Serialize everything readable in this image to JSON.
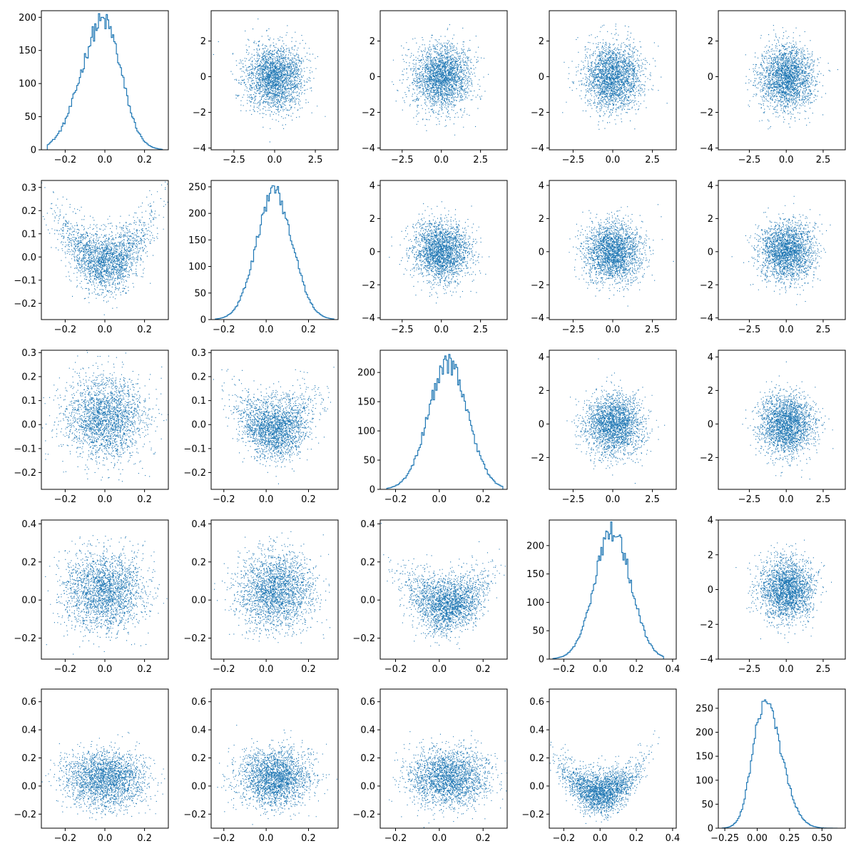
{
  "figure": {
    "series_color": "#1f77b4",
    "layout": "5x5 pair-plot grid (histograms on diagonal, scatter plots off-diagonal)"
  },
  "chart_data": [
    {
      "row": 0,
      "col": 0,
      "type": "histogram",
      "xlim": [
        -0.32,
        0.32
      ],
      "ylim": [
        0,
        210
      ],
      "xticks": [
        -0.2,
        0.0,
        0.2
      ],
      "xtick_labels": [
        "−0.2",
        "0.0",
        "0.2"
      ],
      "yticks": [
        0,
        50,
        100,
        150,
        200
      ],
      "ytick_labels": [
        "0",
        "50",
        "100",
        "150",
        "200"
      ],
      "hist": {
        "range": [
          -0.29,
          0.29
        ],
        "peak_x": -0.01,
        "spread": 0.1,
        "peak": 195,
        "skew": -0.3,
        "noise": 0.08
      }
    },
    {
      "row": 0,
      "col": 1,
      "type": "scatter",
      "xlim": [
        -3.9,
        3.9
      ],
      "ylim": [
        -4.1,
        3.7
      ],
      "xticks": [
        -2.5,
        0.0,
        2.5
      ],
      "xtick_labels": [
        "−2.5",
        "0.0",
        "2.5"
      ],
      "yticks": [
        -4,
        -2,
        0,
        2
      ],
      "ytick_labels": [
        "−4",
        "−2",
        "0",
        "2"
      ],
      "scatter": {
        "kind": "gauss",
        "sx": 0.9,
        "sy": 0.9,
        "n": 2400
      }
    },
    {
      "row": 0,
      "col": 2,
      "type": "scatter",
      "xlim": [
        -3.9,
        4.2
      ],
      "ylim": [
        -4.1,
        3.7
      ],
      "xticks": [
        -2.5,
        0.0,
        2.5
      ],
      "xtick_labels": [
        "−2.5",
        "0.0",
        "2.5"
      ],
      "yticks": [
        -4,
        -2,
        0,
        2
      ],
      "ytick_labels": [
        "−4",
        "−2",
        "0",
        "2"
      ],
      "scatter": {
        "kind": "gauss",
        "sx": 0.9,
        "sy": 0.9,
        "n": 2400
      }
    },
    {
      "row": 0,
      "col": 3,
      "type": "scatter",
      "xlim": [
        -4.0,
        4.0
      ],
      "ylim": [
        -4.1,
        3.7
      ],
      "xticks": [
        -2.5,
        0.0,
        2.5
      ],
      "xtick_labels": [
        "−2.5",
        "0.0",
        "2.5"
      ],
      "yticks": [
        -4,
        -2,
        0,
        2
      ],
      "ytick_labels": [
        "−4",
        "−2",
        "0",
        "2"
      ],
      "scatter": {
        "kind": "gauss",
        "sx": 0.9,
        "sy": 0.9,
        "n": 2400
      }
    },
    {
      "row": 0,
      "col": 4,
      "type": "scatter",
      "xlim": [
        -4.6,
        4.0
      ],
      "ylim": [
        -4.1,
        3.7
      ],
      "xticks": [
        -2.5,
        0.0,
        2.5
      ],
      "xtick_labels": [
        "−2.5",
        "0.0",
        "2.5"
      ],
      "yticks": [
        -4,
        -2,
        0,
        2
      ],
      "ytick_labels": [
        "−4",
        "−2",
        "0",
        "2"
      ],
      "scatter": {
        "kind": "gauss",
        "sx": 0.9,
        "sy": 0.9,
        "n": 2400
      }
    },
    {
      "row": 1,
      "col": 0,
      "type": "scatter",
      "xlim": [
        -0.32,
        0.32
      ],
      "ylim": [
        -0.27,
        0.33
      ],
      "xticks": [
        -0.2,
        0.0,
        0.2
      ],
      "xtick_labels": [
        "−0.2",
        "0.0",
        "0.2"
      ],
      "yticks": [
        -0.2,
        -0.1,
        0.0,
        0.1,
        0.2,
        0.3
      ],
      "ytick_labels": [
        "−0.2",
        "−0.1",
        "0.0",
        "0.1",
        "0.2",
        "0.3"
      ],
      "scatter": {
        "kind": "vshape",
        "sx": 0.11,
        "cx": 0.0,
        "cy": -0.02,
        "k": 2.8,
        "sy": 0.065,
        "n": 2400
      }
    },
    {
      "row": 1,
      "col": 1,
      "type": "histogram",
      "xlim": [
        -0.26,
        0.34
      ],
      "ylim": [
        0,
        262
      ],
      "xticks": [
        -0.2,
        0.0,
        0.2
      ],
      "xtick_labels": [
        "−0.2",
        "0.0",
        "0.2"
      ],
      "yticks": [
        0,
        50,
        100,
        150,
        200,
        250
      ],
      "ytick_labels": [
        "0",
        "50",
        "100",
        "150",
        "200",
        "250"
      ],
      "hist": {
        "range": [
          -0.24,
          0.32
        ],
        "peak_x": 0.04,
        "spread": 0.085,
        "peak": 240,
        "skew": 0.0,
        "noise": 0.07
      }
    },
    {
      "row": 1,
      "col": 2,
      "type": "scatter",
      "xlim": [
        -3.9,
        4.2
      ],
      "ylim": [
        -4.1,
        4.3
      ],
      "xticks": [
        -2.5,
        0.0,
        2.5
      ],
      "xtick_labels": [
        "−2.5",
        "0.0",
        "2.5"
      ],
      "yticks": [
        -4,
        -2,
        0,
        2,
        4
      ],
      "ytick_labels": [
        "−4",
        "−2",
        "0",
        "2",
        "4"
      ],
      "scatter": {
        "kind": "gauss",
        "sx": 0.9,
        "sy": 0.9,
        "n": 2400
      }
    },
    {
      "row": 1,
      "col": 3,
      "type": "scatter",
      "xlim": [
        -4.0,
        4.0
      ],
      "ylim": [
        -4.1,
        4.3
      ],
      "xticks": [
        -2.5,
        0.0,
        2.5
      ],
      "xtick_labels": [
        "−2.5",
        "0.0",
        "2.5"
      ],
      "yticks": [
        -4,
        -2,
        0,
        2,
        4
      ],
      "ytick_labels": [
        "−4",
        "−2",
        "0",
        "2",
        "4"
      ],
      "scatter": {
        "kind": "gauss",
        "sx": 0.9,
        "sy": 0.9,
        "n": 2400
      }
    },
    {
      "row": 1,
      "col": 4,
      "type": "scatter",
      "xlim": [
        -4.6,
        4.0
      ],
      "ylim": [
        -4.1,
        4.3
      ],
      "xticks": [
        -2.5,
        0.0,
        2.5
      ],
      "xtick_labels": [
        "−2.5",
        "0.0",
        "2.5"
      ],
      "yticks": [
        -4,
        -2,
        0,
        2,
        4
      ],
      "ytick_labels": [
        "−4",
        "−2",
        "0",
        "2",
        "4"
      ],
      "scatter": {
        "kind": "gauss",
        "sx": 0.9,
        "sy": 0.9,
        "n": 2400
      }
    },
    {
      "row": 2,
      "col": 0,
      "type": "scatter",
      "xlim": [
        -0.32,
        0.32
      ],
      "ylim": [
        -0.27,
        0.31
      ],
      "xticks": [
        -0.2,
        0.0,
        0.2
      ],
      "xtick_labels": [
        "−0.2",
        "0.0",
        "0.2"
      ],
      "yticks": [
        -0.2,
        -0.1,
        0.0,
        0.1,
        0.2,
        0.3
      ],
      "ytick_labels": [
        "−0.2",
        "−0.1",
        "0.0",
        "0.1",
        "0.2",
        "0.3"
      ],
      "scatter": {
        "kind": "gauss",
        "sx": 0.1,
        "sy": 0.085,
        "mx": 0.0,
        "my": 0.03,
        "n": 2400
      }
    },
    {
      "row": 2,
      "col": 1,
      "type": "scatter",
      "xlim": [
        -0.26,
        0.34
      ],
      "ylim": [
        -0.27,
        0.31
      ],
      "xticks": [
        -0.2,
        0.0,
        0.2
      ],
      "xtick_labels": [
        "−0.2",
        "0.0",
        "0.2"
      ],
      "yticks": [
        -0.2,
        -0.1,
        0.0,
        0.1,
        0.2,
        0.3
      ],
      "ytick_labels": [
        "−0.2",
        "−0.1",
        "0.0",
        "0.1",
        "0.2",
        "0.3"
      ],
      "scatter": {
        "kind": "vshape",
        "sx": 0.085,
        "cx": 0.04,
        "cy": -0.02,
        "k": 2.4,
        "sy": 0.065,
        "n": 2400
      }
    },
    {
      "row": 2,
      "col": 2,
      "type": "histogram",
      "xlim": [
        -0.27,
        0.31
      ],
      "ylim": [
        0,
        238
      ],
      "xticks": [
        -0.2,
        0.0,
        0.2
      ],
      "xtick_labels": [
        "−0.2",
        "0.0",
        "0.2"
      ],
      "yticks": [
        0,
        50,
        100,
        150,
        200
      ],
      "ytick_labels": [
        "0",
        "50",
        "100",
        "150",
        "200"
      ],
      "hist": {
        "range": [
          -0.24,
          0.29
        ],
        "peak_x": 0.04,
        "spread": 0.09,
        "peak": 215,
        "skew": 0.0,
        "noise": 0.08
      }
    },
    {
      "row": 2,
      "col": 3,
      "type": "scatter",
      "xlim": [
        -4.0,
        4.0
      ],
      "ylim": [
        -3.9,
        4.4
      ],
      "xticks": [
        -2.5,
        0.0,
        2.5
      ],
      "xtick_labels": [
        "−2.5",
        "0.0",
        "2.5"
      ],
      "yticks": [
        -2,
        0,
        2,
        4
      ],
      "ytick_labels": [
        "−2",
        "0",
        "2",
        "4"
      ],
      "scatter": {
        "kind": "gauss",
        "sx": 0.9,
        "sy": 0.9,
        "n": 2400
      }
    },
    {
      "row": 2,
      "col": 4,
      "type": "scatter",
      "xlim": [
        -4.6,
        4.0
      ],
      "ylim": [
        -3.9,
        4.4
      ],
      "xticks": [
        -2.5,
        0.0,
        2.5
      ],
      "xtick_labels": [
        "−2.5",
        "0.0",
        "2.5"
      ],
      "yticks": [
        -2,
        0,
        2,
        4
      ],
      "ytick_labels": [
        "−2",
        "0",
        "2",
        "4"
      ],
      "scatter": {
        "kind": "gauss",
        "sx": 0.9,
        "sy": 0.9,
        "n": 2400
      }
    },
    {
      "row": 3,
      "col": 0,
      "type": "scatter",
      "xlim": [
        -0.32,
        0.32
      ],
      "ylim": [
        -0.31,
        0.42
      ],
      "xticks": [
        -0.2,
        0.0,
        0.2
      ],
      "xtick_labels": [
        "−0.2",
        "0.0",
        "0.2"
      ],
      "yticks": [
        -0.2,
        0.0,
        0.2,
        0.4
      ],
      "ytick_labels": [
        "−0.2",
        "0.0",
        "0.2",
        "0.4"
      ],
      "scatter": {
        "kind": "gauss",
        "sx": 0.1,
        "sy": 0.1,
        "mx": 0.0,
        "my": 0.05,
        "n": 2400
      }
    },
    {
      "row": 3,
      "col": 1,
      "type": "scatter",
      "xlim": [
        -0.26,
        0.34
      ],
      "ylim": [
        -0.31,
        0.42
      ],
      "xticks": [
        -0.2,
        0.0,
        0.2
      ],
      "xtick_labels": [
        "−0.2",
        "0.0",
        "0.2"
      ],
      "yticks": [
        -0.2,
        0.0,
        0.2,
        0.4
      ],
      "ytick_labels": [
        "−0.2",
        "0.0",
        "0.2",
        "0.4"
      ],
      "scatter": {
        "kind": "gauss",
        "sx": 0.085,
        "sy": 0.1,
        "mx": 0.04,
        "my": 0.05,
        "n": 2400
      }
    },
    {
      "row": 3,
      "col": 2,
      "type": "scatter",
      "xlim": [
        -0.27,
        0.31
      ],
      "ylim": [
        -0.31,
        0.42
      ],
      "xticks": [
        -0.2,
        0.0,
        0.2
      ],
      "xtick_labels": [
        "−0.2",
        "0.0",
        "0.2"
      ],
      "yticks": [
        -0.2,
        0.0,
        0.2,
        0.4
      ],
      "ytick_labels": [
        "−0.2",
        "0.0",
        "0.2",
        "0.4"
      ],
      "scatter": {
        "kind": "vshape",
        "sx": 0.09,
        "cx": 0.03,
        "cy": -0.03,
        "k": 3.2,
        "sy": 0.075,
        "n": 2400
      }
    },
    {
      "row": 3,
      "col": 3,
      "type": "histogram",
      "xlim": [
        -0.28,
        0.42
      ],
      "ylim": [
        0,
        245
      ],
      "xticks": [
        -0.2,
        0.0,
        0.2,
        0.4
      ],
      "xtick_labels": [
        "−0.2",
        "0.0",
        "0.2",
        "0.4"
      ],
      "yticks": [
        0,
        50,
        100,
        150,
        200
      ],
      "ytick_labels": [
        "0",
        "50",
        "100",
        "150",
        "200"
      ],
      "hist": {
        "range": [
          -0.26,
          0.35
        ],
        "peak_x": 0.07,
        "spread": 0.1,
        "peak": 225,
        "skew": 0.0,
        "noise": 0.08
      }
    },
    {
      "row": 3,
      "col": 4,
      "type": "scatter",
      "xlim": [
        -4.6,
        4.0
      ],
      "ylim": [
        -4.0,
        4.0
      ],
      "xticks": [
        -2.5,
        0.0,
        2.5
      ],
      "xtick_labels": [
        "−2.5",
        "0.0",
        "2.5"
      ],
      "yticks": [
        -4,
        -2,
        0,
        2,
        4
      ],
      "ytick_labels": [
        "−4",
        "−2",
        "0",
        "2",
        "4"
      ],
      "scatter": {
        "kind": "gauss",
        "sx": 0.9,
        "sy": 0.9,
        "n": 2400
      }
    },
    {
      "row": 4,
      "col": 0,
      "type": "scatter",
      "xlim": [
        -0.32,
        0.32
      ],
      "ylim": [
        -0.3,
        0.69
      ],
      "xticks": [
        -0.2,
        0.0,
        0.2
      ],
      "xtick_labels": [
        "−0.2",
        "0.0",
        "0.2"
      ],
      "yticks": [
        -0.2,
        0.0,
        0.2,
        0.4,
        0.6
      ],
      "ytick_labels": [
        "−0.2",
        "0.0",
        "0.2",
        "0.4",
        "0.6"
      ],
      "scatter": {
        "kind": "gauss",
        "sx": 0.1,
        "sy": 0.1,
        "mx": 0.0,
        "my": 0.05,
        "n": 2400
      }
    },
    {
      "row": 4,
      "col": 1,
      "type": "scatter",
      "xlim": [
        -0.26,
        0.34
      ],
      "ylim": [
        -0.3,
        0.69
      ],
      "xticks": [
        -0.2,
        0.0,
        0.2
      ],
      "xtick_labels": [
        "−0.2",
        "0.0",
        "0.2"
      ],
      "yticks": [
        -0.2,
        0.0,
        0.2,
        0.4,
        0.6
      ],
      "ytick_labels": [
        "−0.2",
        "0.0",
        "0.2",
        "0.4",
        "0.6"
      ],
      "scatter": {
        "kind": "gauss",
        "sx": 0.085,
        "sy": 0.1,
        "mx": 0.04,
        "my": 0.06,
        "n": 2400
      }
    },
    {
      "row": 4,
      "col": 2,
      "type": "scatter",
      "xlim": [
        -0.27,
        0.31
      ],
      "ylim": [
        -0.3,
        0.69
      ],
      "xticks": [
        -0.2,
        0.0,
        0.2
      ],
      "xtick_labels": [
        "−0.2",
        "0.0",
        "0.2"
      ],
      "yticks": [
        -0.2,
        0.0,
        0.2,
        0.4,
        0.6
      ],
      "ytick_labels": [
        "−0.2",
        "0.0",
        "0.2",
        "0.4",
        "0.6"
      ],
      "scatter": {
        "kind": "gauss",
        "sx": 0.09,
        "sy": 0.1,
        "mx": 0.04,
        "my": 0.06,
        "n": 2400
      }
    },
    {
      "row": 4,
      "col": 3,
      "type": "scatter",
      "xlim": [
        -0.28,
        0.42
      ],
      "ylim": [
        -0.3,
        0.69
      ],
      "xticks": [
        -0.2,
        0.0,
        0.2,
        0.4
      ],
      "xtick_labels": [
        "−0.2",
        "0.0",
        "0.2",
        "0.4"
      ],
      "yticks": [
        -0.2,
        0.0,
        0.2,
        0.4,
        0.6
      ],
      "ytick_labels": [
        "−0.2",
        "0.0",
        "0.2",
        "0.4",
        "0.6"
      ],
      "scatter": {
        "kind": "vshape",
        "sx": 0.1,
        "cx": 0.0,
        "cy": -0.05,
        "k": 3.8,
        "sy": 0.075,
        "n": 2400
      }
    },
    {
      "row": 4,
      "col": 4,
      "type": "histogram",
      "xlim": [
        -0.3,
        0.68
      ],
      "ylim": [
        0,
        290
      ],
      "xticks": [
        -0.25,
        0.0,
        0.25,
        0.5
      ],
      "xtick_labels": [
        "−0.25",
        "0.00",
        "0.25",
        "0.50"
      ],
      "yticks": [
        0,
        50,
        100,
        150,
        200,
        250
      ],
      "ytick_labels": [
        "0",
        "50",
        "100",
        "150",
        "200",
        "250"
      ],
      "hist": {
        "range": [
          -0.27,
          0.62
        ],
        "peak_x": 0.06,
        "spread": 0.11,
        "peak": 262,
        "skew": 0.5,
        "noise": 0.07
      }
    }
  ]
}
